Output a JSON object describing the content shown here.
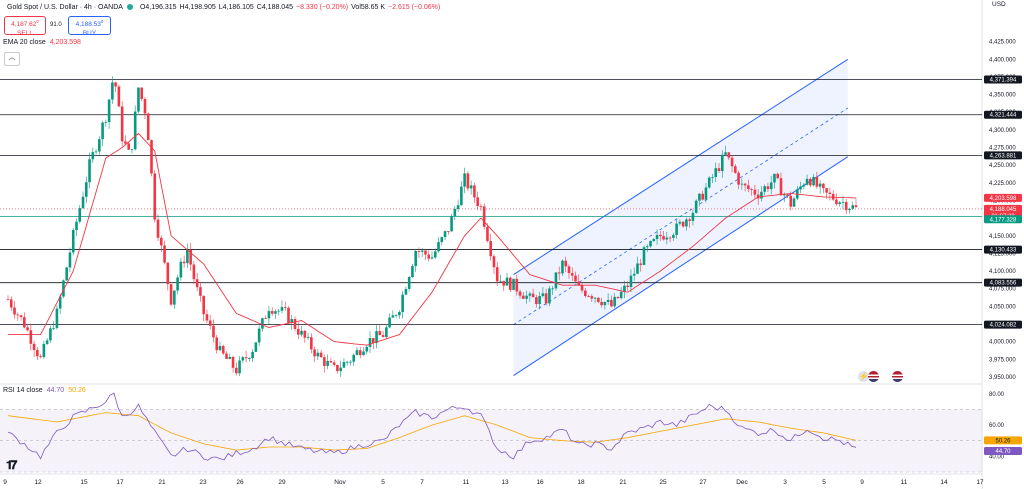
{
  "header": {
    "title": "Gold Spot / U.S. Dollar · 4h · OANDA",
    "open": "O4,196.315",
    "high": "H4,198.905",
    "low": "L4,186.105",
    "close": "C4,188.045",
    "change": "−8.330 (−0.20%)",
    "volume": "Vol58.65 K",
    "vol_change": "−2.615 (−0.06%)"
  },
  "trade": {
    "sell_price": "4,187.62",
    "sell_sup": "0",
    "sell_label": "SELL",
    "spread": "91.0",
    "buy_price": "4,188.53",
    "buy_sup": "0",
    "buy_label": "BUY"
  },
  "ema_legend": {
    "label": "EMA 20 close",
    "value": "4,203.598"
  },
  "rsi_legend": {
    "label": "RSI 14 close",
    "rsi": "44.70",
    "ma": "50.26"
  },
  "currency": "USD",
  "colors": {
    "up": "#089981",
    "down": "#f23645",
    "ema": "#f23645",
    "rsi": "#7e57c2",
    "rsi_ma": "#f7a600",
    "channel": "#2962ff",
    "price_label": "#131722",
    "last_price": "#f23645",
    "green_level": "#089981"
  },
  "chart_data": {
    "type": "candlestick",
    "symbol": "Gold Spot / U.S. Dollar",
    "timeframe": "4h",
    "ylim": [
      3940,
      4450
    ],
    "y_ticks": [
      "4,425.000",
      "4,400.000",
      "4,375.000",
      "4,350.000",
      "4,325.000",
      "4,300.000",
      "4,275.000",
      "4,250.000",
      "4,225.000",
      "4,200.000",
      "4,175.000",
      "4,150.000",
      "4,125.000",
      "4,100.000",
      "4,075.000",
      "4,050.000",
      "4,025.000",
      "4,000.000",
      "3,975.000",
      "3,950.000"
    ],
    "x_ticks": [
      "9",
      "12",
      "15",
      "17",
      "21",
      "23",
      "26",
      "29",
      "Nov",
      "5",
      "7",
      "11",
      "13",
      "16",
      "18",
      "21",
      "25",
      "27",
      "Dec",
      "3",
      "5",
      "9",
      "11",
      "14",
      "17"
    ],
    "horizontal_levels": [
      {
        "value": 4371.394,
        "label": "4,371.394"
      },
      {
        "value": 4321.444,
        "label": "4,321.444"
      },
      {
        "value": 4263.881,
        "label": "4,263.881"
      },
      {
        "value": 4130.433,
        "label": "4,130.433"
      },
      {
        "value": 4083.556,
        "label": "4,083.556"
      },
      {
        "value": 4024.082,
        "label": "4,024.082"
      }
    ],
    "green_level": {
      "value": 4177.328,
      "label": "4,177.328"
    },
    "ema_value": {
      "value": 4203.598,
      "label": "4,203.598"
    },
    "last_price": {
      "value": 4188.045,
      "label": "4,188.045",
      "countdown": "01:07:38"
    },
    "price_path": [
      [
        0,
        4060
      ],
      [
        2,
        4025
      ],
      [
        4,
        3975
      ],
      [
        6,
        4040
      ],
      [
        8,
        4150
      ],
      [
        10,
        4250
      ],
      [
        12,
        4320
      ],
      [
        13,
        4380
      ],
      [
        14,
        4290
      ],
      [
        15,
        4260
      ],
      [
        16,
        4360
      ],
      [
        17,
        4320
      ],
      [
        18,
        4180
      ],
      [
        19,
        4120
      ],
      [
        20,
        4060
      ],
      [
        21,
        4100
      ],
      [
        22,
        4130
      ],
      [
        23,
        4080
      ],
      [
        24,
        4040
      ],
      [
        26,
        3985
      ],
      [
        28,
        3960
      ],
      [
        30,
        3990
      ],
      [
        32,
        4050
      ],
      [
        34,
        4040
      ],
      [
        36,
        4010
      ],
      [
        38,
        3980
      ],
      [
        40,
        3960
      ],
      [
        42,
        3975
      ],
      [
        44,
        4000
      ],
      [
        46,
        4010
      ],
      [
        48,
        4050
      ],
      [
        50,
        4130
      ],
      [
        52,
        4120
      ],
      [
        54,
        4160
      ],
      [
        56,
        4230
      ],
      [
        58,
        4190
      ],
      [
        60,
        4090
      ],
      [
        62,
        4080
      ],
      [
        64,
        4060
      ],
      [
        66,
        4060
      ],
      [
        68,
        4110
      ],
      [
        70,
        4075
      ],
      [
        72,
        4065
      ],
      [
        74,
        4050
      ],
      [
        76,
        4080
      ],
      [
        78,
        4125
      ],
      [
        80,
        4150
      ],
      [
        82,
        4160
      ],
      [
        84,
        4185
      ],
      [
        86,
        4225
      ],
      [
        88,
        4265
      ],
      [
        90,
        4220
      ],
      [
        92,
        4210
      ],
      [
        94,
        4230
      ],
      [
        96,
        4195
      ],
      [
        98,
        4235
      ],
      [
        100,
        4210
      ],
      [
        102,
        4200
      ],
      [
        104,
        4188
      ]
    ],
    "ema_path": [
      [
        0,
        4010
      ],
      [
        4,
        4010
      ],
      [
        8,
        4100
      ],
      [
        12,
        4260
      ],
      [
        14,
        4275
      ],
      [
        16,
        4295
      ],
      [
        18,
        4270
      ],
      [
        20,
        4150
      ],
      [
        22,
        4130
      ],
      [
        24,
        4110
      ],
      [
        28,
        4040
      ],
      [
        32,
        4020
      ],
      [
        36,
        4030
      ],
      [
        40,
        4000
      ],
      [
        44,
        3995
      ],
      [
        48,
        4010
      ],
      [
        52,
        4070
      ],
      [
        56,
        4150
      ],
      [
        58,
        4175
      ],
      [
        60,
        4150
      ],
      [
        64,
        4095
      ],
      [
        68,
        4080
      ],
      [
        72,
        4080
      ],
      [
        76,
        4070
      ],
      [
        80,
        4100
      ],
      [
        84,
        4135
      ],
      [
        88,
        4175
      ],
      [
        92,
        4205
      ],
      [
        96,
        4210
      ],
      [
        100,
        4205
      ],
      [
        104,
        4203.598
      ]
    ],
    "channel": {
      "lower_start": [
        62,
        3952
      ],
      "lower_end": [
        103,
        4262
      ],
      "upper_start": [
        62,
        4095
      ],
      "upper_end": [
        103,
        4400
      ],
      "mid_start": [
        62,
        4024
      ],
      "mid_end": [
        103,
        4331
      ]
    },
    "rsi": {
      "levels": [
        {
          "value": 80,
          "label": "80.00"
        },
        {
          "value": 60,
          "label": "60.00"
        },
        {
          "value": 40,
          "label": "40.00"
        }
      ],
      "current": {
        "value": 44.7,
        "label": "44.70"
      },
      "ma": {
        "value": 50.26,
        "label": "50.26"
      },
      "ylim": [
        30,
        85
      ],
      "rsi_path": [
        [
          0,
          55
        ],
        [
          2,
          48
        ],
        [
          4,
          40
        ],
        [
          6,
          55
        ],
        [
          8,
          65
        ],
        [
          10,
          70
        ],
        [
          12,
          75
        ],
        [
          13,
          80
        ],
        [
          14,
          65
        ],
        [
          16,
          72
        ],
        [
          18,
          55
        ],
        [
          20,
          40
        ],
        [
          22,
          45
        ],
        [
          24,
          40
        ],
        [
          26,
          38
        ],
        [
          28,
          42
        ],
        [
          30,
          45
        ],
        [
          32,
          52
        ],
        [
          34,
          48
        ],
        [
          36,
          45
        ],
        [
          38,
          43
        ],
        [
          40,
          42
        ],
        [
          42,
          45
        ],
        [
          44,
          48
        ],
        [
          46,
          50
        ],
        [
          48,
          60
        ],
        [
          50,
          68
        ],
        [
          52,
          65
        ],
        [
          54,
          70
        ],
        [
          56,
          72
        ],
        [
          58,
          66
        ],
        [
          60,
          45
        ],
        [
          62,
          40
        ],
        [
          64,
          50
        ],
        [
          66,
          52
        ],
        [
          68,
          57
        ],
        [
          70,
          47
        ],
        [
          72,
          48
        ],
        [
          74,
          45
        ],
        [
          76,
          55
        ],
        [
          78,
          58
        ],
        [
          80,
          62
        ],
        [
          82,
          60
        ],
        [
          84,
          66
        ],
        [
          86,
          72
        ],
        [
          88,
          70
        ],
        [
          90,
          58
        ],
        [
          92,
          55
        ],
        [
          94,
          57
        ],
        [
          96,
          50
        ],
        [
          98,
          58
        ],
        [
          100,
          52
        ],
        [
          102,
          50
        ],
        [
          104,
          44.7
        ]
      ],
      "ma_path": [
        [
          0,
          66
        ],
        [
          6,
          62
        ],
        [
          12,
          68
        ],
        [
          16,
          66
        ],
        [
          20,
          55
        ],
        [
          24,
          48
        ],
        [
          28,
          44
        ],
        [
          32,
          46
        ],
        [
          36,
          46
        ],
        [
          40,
          44
        ],
        [
          44,
          45
        ],
        [
          48,
          52
        ],
        [
          52,
          60
        ],
        [
          56,
          66
        ],
        [
          60,
          60
        ],
        [
          64,
          52
        ],
        [
          68,
          50
        ],
        [
          72,
          49
        ],
        [
          76,
          52
        ],
        [
          80,
          56
        ],
        [
          84,
          60
        ],
        [
          88,
          64
        ],
        [
          92,
          62
        ],
        [
          96,
          58
        ],
        [
          100,
          55
        ],
        [
          104,
          50.26
        ]
      ]
    }
  }
}
